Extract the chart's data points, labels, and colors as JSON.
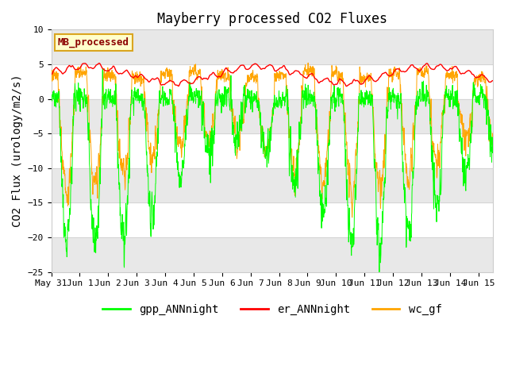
{
  "title": "Mayberry processed CO2 Fluxes",
  "ylabel": "CO2 Flux (urology/m2/s)",
  "ylim": [
    -25,
    10
  ],
  "yticks": [
    -25,
    -20,
    -15,
    -10,
    -5,
    0,
    5,
    10
  ],
  "x_tick_labels": [
    "May 31",
    "Jun 1",
    "Jun 2",
    "Jun 3",
    "Jun 4",
    "Jun 5",
    "Jun 6",
    "Jun 7",
    "Jun 8",
    "Jun 9",
    "Jun 10",
    "Jun 11",
    "Jun 12",
    "Jun 13",
    "Jun 14",
    "Jun 15"
  ],
  "x_tick_positions": [
    0,
    1,
    2,
    3,
    4,
    5,
    6,
    7,
    8,
    9,
    10,
    11,
    12,
    13,
    14,
    15
  ],
  "legend_label": "MB_processed",
  "legend_text_color": "#8B0000",
  "legend_bg_color": "#FFFFCC",
  "legend_border_color": "#DAA520",
  "gpp_color": "#00FF00",
  "er_color": "#FF0000",
  "wc_color": "#FFA500",
  "gpp_label": "gpp_ANNnight",
  "er_label": "er_ANNnight",
  "wc_label": "wc_gf",
  "plot_bg_color": "#FFFFFF",
  "band_color": "#E8E8E8",
  "title_fontsize": 12,
  "ylabel_fontsize": 10,
  "tick_fontsize": 8,
  "legend_fontsize": 10,
  "n_per_day": 144,
  "n_days": 15.5
}
